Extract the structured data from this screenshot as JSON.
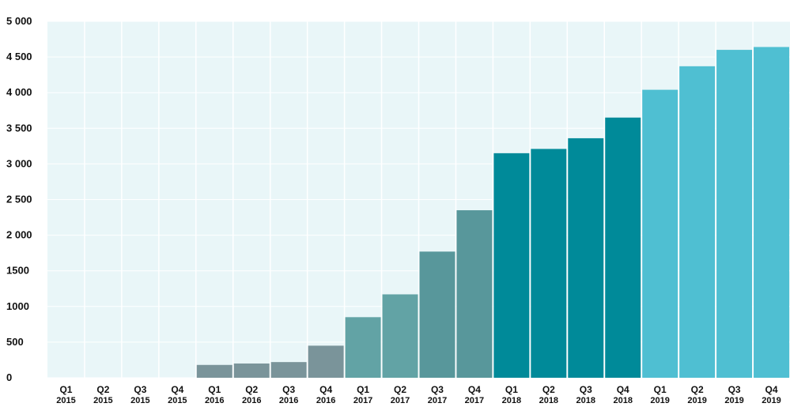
{
  "chart_data": {
    "type": "bar",
    "title": "",
    "xlabel": "",
    "ylabel": "",
    "ylim": [
      0,
      5000
    ],
    "yticks": [
      0,
      500,
      1000,
      1500,
      2000,
      2500,
      3000,
      3500,
      4000,
      4500,
      5000
    ],
    "ytick_labels": [
      "0",
      "500",
      "1000",
      "1500",
      "2 000",
      "2 500",
      "3 000",
      "3 500",
      "4 000",
      "4 500",
      "5 000"
    ],
    "grid": true,
    "categories": [
      {
        "quarter": "Q1",
        "year": "2015"
      },
      {
        "quarter": "Q2",
        "year": "2015"
      },
      {
        "quarter": "Q3",
        "year": "2015"
      },
      {
        "quarter": "Q4",
        "year": "2015"
      },
      {
        "quarter": "Q1",
        "year": "2016"
      },
      {
        "quarter": "Q2",
        "year": "2016"
      },
      {
        "quarter": "Q3",
        "year": "2016"
      },
      {
        "quarter": "Q4",
        "year": "2016"
      },
      {
        "quarter": "Q1",
        "year": "2017"
      },
      {
        "quarter": "Q2",
        "year": "2017"
      },
      {
        "quarter": "Q3",
        "year": "2017"
      },
      {
        "quarter": "Q4",
        "year": "2017"
      },
      {
        "quarter": "Q1",
        "year": "2018"
      },
      {
        "quarter": "Q2",
        "year": "2018"
      },
      {
        "quarter": "Q3",
        "year": "2018"
      },
      {
        "quarter": "Q4",
        "year": "2018"
      },
      {
        "quarter": "Q1",
        "year": "2019"
      },
      {
        "quarter": "Q2",
        "year": "2019"
      },
      {
        "quarter": "Q3",
        "year": "2019"
      },
      {
        "quarter": "Q4",
        "year": "2019"
      }
    ],
    "values": [
      0,
      0,
      0,
      0,
      180,
      200,
      220,
      450,
      850,
      1170,
      1770,
      2350,
      3150,
      3210,
      3360,
      3650,
      4040,
      4370,
      4600,
      4640
    ],
    "bar_colors": [
      "#7a949a",
      "#7a949a",
      "#7a949a",
      "#7a949a",
      "#7a949a",
      "#7a949a",
      "#7a949a",
      "#7a949a",
      "#62a3a5",
      "#62a3a5",
      "#58979b",
      "#58979b",
      "#008a99",
      "#008a99",
      "#008a99",
      "#008a99",
      "#4fbfd2",
      "#4fbfd2",
      "#4fbfd2",
      "#4fbfd2"
    ],
    "plot_background": "#e9f6f8",
    "gridline_color": "#ffffff"
  }
}
